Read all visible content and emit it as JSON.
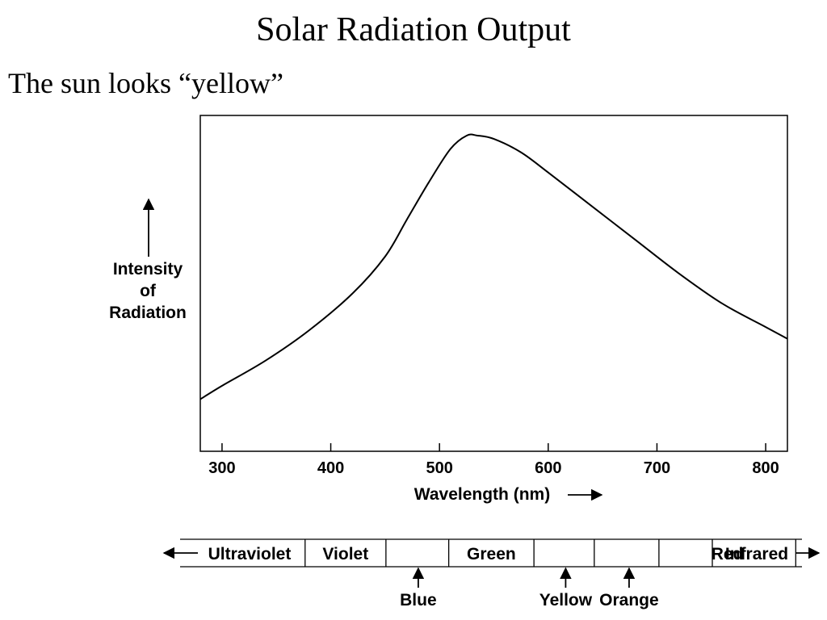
{
  "slide": {
    "title": "Solar Radiation Output",
    "subtitle": "The sun looks “yellow”"
  },
  "chart_data": {
    "type": "line",
    "title": "",
    "xlabel": "Wavelength (nm)",
    "ylabel": [
      "Intensity",
      "of",
      "Radiation"
    ],
    "xlim": [
      280,
      820
    ],
    "ylim": [
      0,
      1
    ],
    "x_ticks": [
      300,
      400,
      500,
      600,
      700,
      800
    ],
    "y_ticks": [],
    "grid": false,
    "series": [
      {
        "x": [
          280,
          300,
          340,
          380,
          420,
          450,
          470,
          490,
          510,
          525,
          535,
          550,
          575,
          600,
          640,
          680,
          720,
          760,
          800,
          820
        ],
        "y": [
          0.155,
          0.195,
          0.27,
          0.36,
          0.47,
          0.58,
          0.69,
          0.8,
          0.9,
          0.94,
          0.94,
          0.93,
          0.89,
          0.83,
          0.73,
          0.63,
          0.53,
          0.44,
          0.37,
          0.335
        ]
      }
    ],
    "spectrum_bands": [
      {
        "label": "Ultraviolet",
        "from": 0.0,
        "to": 0.201
      },
      {
        "label": "Violet",
        "from": 0.201,
        "to": 0.331
      },
      {
        "label": "",
        "from": 0.331,
        "to": 0.432
      },
      {
        "label": "Green",
        "from": 0.432,
        "to": 0.569
      },
      {
        "label": "",
        "from": 0.569,
        "to": 0.666
      },
      {
        "label": "",
        "from": 0.666,
        "to": 0.77
      },
      {
        "label": "Red",
        "from": 0.77,
        "to": 0.99
      },
      {
        "label": "Infrared",
        "from": 0.99,
        "to": 1.0
      }
    ],
    "spectrum_pointers": [
      {
        "label": "Blue",
        "position": 0.383
      },
      {
        "label": "Yellow",
        "position": 0.62
      },
      {
        "label": "Orange",
        "position": 0.722
      }
    ]
  }
}
